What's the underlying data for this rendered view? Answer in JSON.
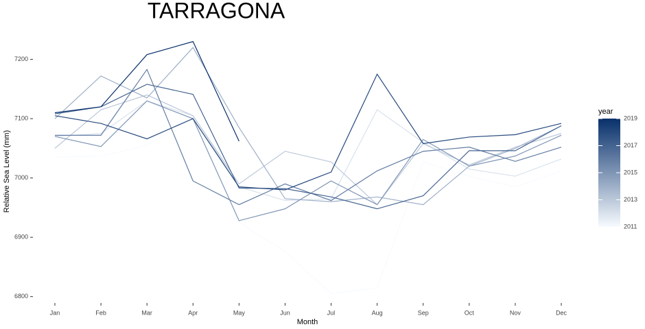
{
  "chart_data": {
    "type": "line",
    "title": "TARRAGONA",
    "x_label": "Month",
    "y_label": "Relative Sea Level (mm)",
    "categories": [
      "Jan",
      "Feb",
      "Mar",
      "Apr",
      "May",
      "Jun",
      "Jul",
      "Aug",
      "Sep",
      "Oct",
      "Nov",
      "Dec"
    ],
    "ylim": [
      6780,
      7240
    ],
    "yticks": [
      6800,
      6900,
      7000,
      7100,
      7200
    ],
    "grid": false,
    "legend": {
      "title": "year",
      "position": "right",
      "lim": [
        2011,
        2019
      ],
      "ticks": [
        2011,
        2013,
        2015,
        2017,
        2019
      ],
      "colorscale": [
        "#f7fbff",
        "#08306b"
      ]
    },
    "series": [
      {
        "year": 2011,
        "values": [
          7035,
          7037,
          7055,
          7102,
          6925,
          6876,
          6805,
          6815,
          7027,
          7003,
          6985,
          7012
        ]
      },
      {
        "year": 2012,
        "values": [
          7070,
          7075,
          7130,
          7105,
          6985,
          6962,
          6965,
          7115,
          7060,
          7015,
          7003,
          7032
        ]
      },
      {
        "year": 2013,
        "values": [
          7050,
          7115,
          7140,
          7105,
          6990,
          7045,
          7027,
          6955,
          7058,
          7022,
          7052,
          7075
        ]
      },
      {
        "year": 2014,
        "values": [
          7100,
          7172,
          7135,
          7220,
          7085,
          6965,
          6960,
          6968,
          6955,
          7020,
          7050,
          7088
        ]
      },
      {
        "year": 2015,
        "values": [
          7070,
          7053,
          7130,
          7100,
          6928,
          6948,
          6995,
          6955,
          7065,
          7020,
          7037,
          7072
        ]
      },
      {
        "year": 2016,
        "values": [
          7072,
          7072,
          7183,
          6995,
          6955,
          6990,
          6962,
          7012,
          7045,
          7052,
          7028,
          7052
        ]
      },
      {
        "year": 2017,
        "values": [
          7108,
          7120,
          7158,
          7141,
          6983,
          6982,
          6968,
          6948,
          6970,
          7046,
          7046,
          7088
        ]
      },
      {
        "year": 2018,
        "values": [
          7105,
          7092,
          7066,
          7100,
          6985,
          6980,
          7010,
          7175,
          7058,
          7069,
          7073,
          7092
        ]
      },
      {
        "year": 2019,
        "values": [
          7110,
          7120,
          7208,
          7230,
          7062,
          null,
          null,
          null,
          null,
          null,
          null,
          null
        ]
      }
    ]
  }
}
